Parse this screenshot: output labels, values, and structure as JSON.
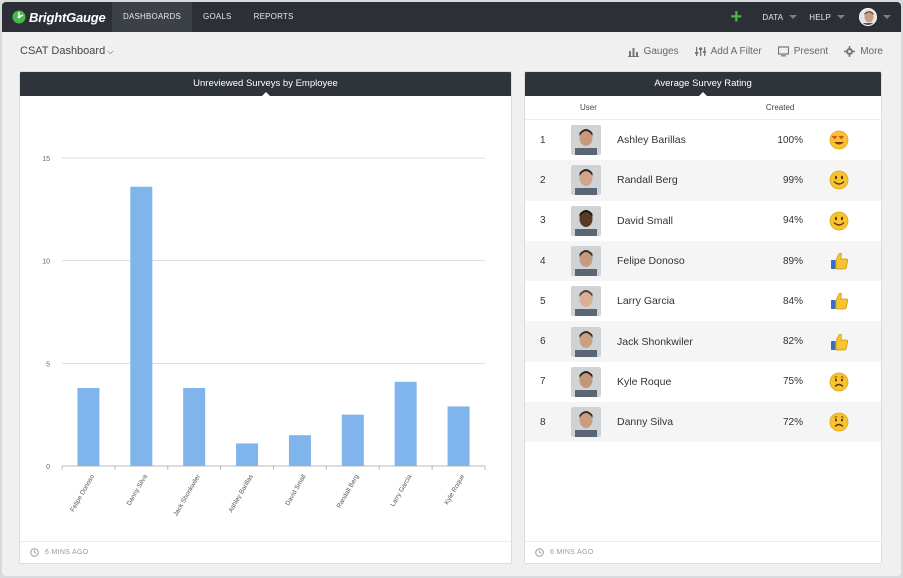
{
  "app": {
    "name": "BrightGauge"
  },
  "nav": {
    "dashboards": "DASHBOARDS",
    "goals": "GOALS",
    "reports": "REPORTS"
  },
  "topright": {
    "data": "DATA",
    "help": "HELP"
  },
  "subheader": {
    "title": "CSAT Dashboard",
    "gauges": "Gauges",
    "add_filter": "Add A Filter",
    "present": "Present",
    "more": "More"
  },
  "left_panel": {
    "title": "Unreviewed Surveys by Employee",
    "footer": "6 MINS AGO"
  },
  "right_panel": {
    "title": "Average Survey Rating",
    "footer": "6 MINS AGO",
    "col_user": "User",
    "col_created": "Created",
    "rows": [
      {
        "rank": "1",
        "name": "Ashley Barillas",
        "pct": "100%",
        "emoji": "heart-eyes-emoji",
        "skin": "#c89a7c",
        "hair": "#3a2418"
      },
      {
        "rank": "2",
        "name": "Randall Berg",
        "pct": "99%",
        "emoji": "smiley-emoji",
        "skin": "#d2a489",
        "hair": "#2a2420"
      },
      {
        "rank": "3",
        "name": "David Small",
        "pct": "94%",
        "emoji": "smiley-emoji",
        "skin": "#5a3a26",
        "hair": "#1b1410"
      },
      {
        "rank": "4",
        "name": "Felipe Donoso",
        "pct": "89%",
        "emoji": "thumbs-up-emoji",
        "skin": "#c79a80",
        "hair": "#3b2a20"
      },
      {
        "rank": "5",
        "name": "Larry Garcia",
        "pct": "84%",
        "emoji": "thumbs-up-emoji",
        "skin": "#d9b096",
        "hair": "#5b3f2d"
      },
      {
        "rank": "6",
        "name": "Jack Shonkwiler",
        "pct": "82%",
        "emoji": "thumbs-up-emoji",
        "skin": "#caa084",
        "hair": "#3a2a22"
      },
      {
        "rank": "7",
        "name": "Kyle Roque",
        "pct": "75%",
        "emoji": "frown-emoji",
        "skin": "#c39579",
        "hair": "#2a221e"
      },
      {
        "rank": "8",
        "name": "Danny Silva",
        "pct": "72%",
        "emoji": "frown-emoji",
        "skin": "#c99d82",
        "hair": "#3d2c22"
      }
    ]
  },
  "colors": {
    "bar": "#7fb4ec",
    "topbar": "#2c3036",
    "panel_header": "#2f343a",
    "accent_green": "#49b84c"
  },
  "chart_data": {
    "type": "bar",
    "title": "Unreviewed Surveys by Employee",
    "categories": [
      "Felipe Donoso",
      "Danny Silva",
      "Jack Shonkwiler",
      "Ashley Barillas",
      "David Small",
      "Randall Berg",
      "Larry Garcia",
      "Kyle Roque"
    ],
    "values": [
      3.8,
      13.6,
      3.8,
      1.1,
      1.5,
      2.5,
      4.1,
      2.9
    ],
    "yticks": [
      0,
      5,
      10,
      15
    ],
    "ylim": [
      0,
      15
    ],
    "grid": true,
    "xlabel": "",
    "ylabel": ""
  }
}
